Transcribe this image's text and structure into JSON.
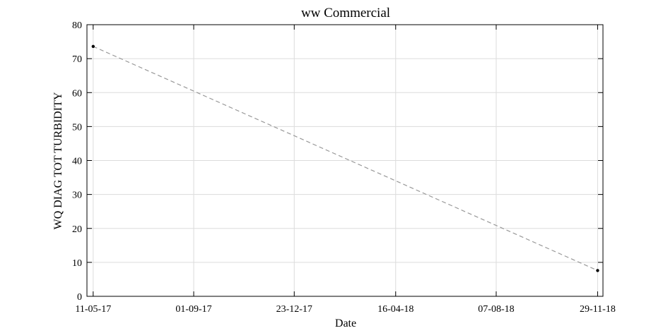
{
  "chart_data": {
    "type": "line",
    "title": "ww Commercial",
    "xlabel": "Date",
    "ylabel": "WQ DIAG TOT TURBIDITY",
    "x_ticks": [
      "11-05-17",
      "01-09-17",
      "23-12-17",
      "16-04-18",
      "07-08-18",
      "29-11-18"
    ],
    "y_ticks": [
      0,
      10,
      20,
      30,
      40,
      50,
      60,
      70,
      80
    ],
    "xlim": [
      "2017-05-04",
      "2018-12-05"
    ],
    "ylim": [
      0,
      80
    ],
    "grid": true,
    "series": [
      {
        "x": [
          "2017-05-11",
          "2018-11-29"
        ],
        "y": [
          73.6,
          7.6
        ],
        "line_style": "dashed",
        "line_color": "#999999",
        "marker_color": "#000000"
      }
    ]
  }
}
